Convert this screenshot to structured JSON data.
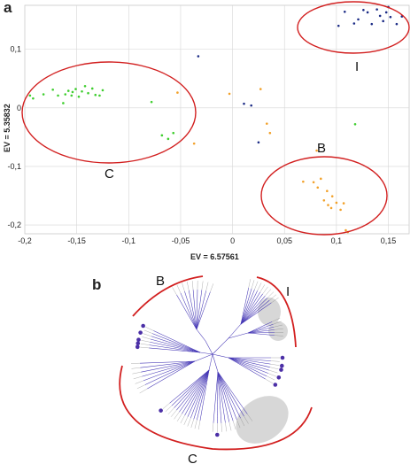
{
  "panels": {
    "a": "a",
    "b": "b"
  },
  "colors": {
    "group_C": "#3fce2f",
    "group_B": "#f2a12a",
    "group_I": "#1c2c86",
    "ellipse": "#d21f1f",
    "grid": "#d6d6d6",
    "branch": "#4436b5",
    "tip": "#4b2fa6",
    "shade": "#d0d0d0"
  },
  "chart_data": [
    {
      "type": "scatter",
      "title": "",
      "xlabel": "EV = 6.57561",
      "ylabel": "EV = 5.35832",
      "xlim": [
        -0.2,
        0.17
      ],
      "ylim": [
        -0.215,
        0.175
      ],
      "xticks": [
        -0.2,
        -0.15,
        -0.1,
        -0.05,
        0,
        0.05,
        0.1,
        0.15
      ],
      "xtick_labels": [
        "-0,2",
        "-0,15",
        "-0,1",
        "-0,05",
        "0",
        "0,05",
        "0,1",
        "0,15"
      ],
      "yticks": [
        0.1,
        0,
        -0.1,
        -0.2
      ],
      "ytick_labels": [
        "0,1",
        "0",
        "-0,1",
        "-0,2"
      ],
      "grid": true,
      "series": [
        {
          "color_key": "group_C",
          "points": [
            [
              -0.195,
              0.021
            ],
            [
              -0.192,
              0.016
            ],
            [
              -0.182,
              0.023
            ],
            [
              -0.173,
              0.031
            ],
            [
              -0.168,
              0.021
            ],
            [
              -0.163,
              0.008
            ],
            [
              -0.161,
              0.023
            ],
            [
              -0.158,
              0.029
            ],
            [
              -0.155,
              0.021
            ],
            [
              -0.154,
              0.027
            ],
            [
              -0.151,
              0.032
            ],
            [
              -0.148,
              0.019
            ],
            [
              -0.145,
              0.028
            ],
            [
              -0.142,
              0.037
            ],
            [
              -0.139,
              0.025
            ],
            [
              -0.135,
              0.033
            ],
            [
              -0.132,
              0.022
            ],
            [
              -0.128,
              0.021
            ],
            [
              -0.125,
              0.03
            ],
            [
              -0.078,
              0.01
            ],
            [
              -0.068,
              -0.047
            ],
            [
              -0.062,
              -0.053
            ],
            [
              -0.057,
              -0.043
            ]
          ]
        },
        {
          "color_key": "group_B",
          "points": [
            [
              -0.053,
              0.026
            ],
            [
              -0.003,
              0.024
            ],
            [
              0.027,
              0.032
            ],
            [
              0.033,
              -0.027
            ],
            [
              0.036,
              -0.043
            ],
            [
              0.081,
              -0.073
            ],
            [
              0.068,
              -0.126
            ],
            [
              0.078,
              -0.127
            ],
            [
              0.082,
              -0.136
            ],
            [
              0.085,
              -0.121
            ],
            [
              0.088,
              -0.158
            ],
            [
              0.091,
              -0.142
            ],
            [
              0.092,
              -0.166
            ],
            [
              0.096,
              -0.151
            ],
            [
              0.095,
              -0.171
            ],
            [
              0.1,
              -0.162
            ],
            [
              0.104,
              -0.174
            ],
            [
              0.107,
              -0.163
            ],
            [
              0.109,
              -0.209
            ],
            [
              0.111,
              -0.212
            ],
            [
              -0.037,
              -0.061
            ]
          ]
        },
        {
          "color_key": "group_I",
          "points": [
            [
              -0.033,
              0.088
            ],
            [
              0.011,
              0.007
            ],
            [
              0.018,
              0.004
            ],
            [
              0.025,
              -0.059
            ],
            [
              0.102,
              0.14
            ],
            [
              0.108,
              0.164
            ],
            [
              0.117,
              0.144
            ],
            [
              0.121,
              0.151
            ],
            [
              0.126,
              0.167
            ],
            [
              0.13,
              0.163
            ],
            [
              0.134,
              0.143
            ],
            [
              0.139,
              0.168
            ],
            [
              0.142,
              0.157
            ],
            [
              0.148,
              0.163
            ],
            [
              0.152,
              0.155
            ],
            [
              0.158,
              0.143
            ],
            [
              0.163,
              0.156
            ],
            [
              0.15,
              0.172
            ],
            [
              0.145,
              0.148
            ]
          ]
        },
        {
          "color_key": "group_C",
          "points": [
            [
              0.118,
              -0.028
            ]
          ]
        }
      ],
      "annotations": [
        "C",
        "B",
        "I"
      ]
    },
    {
      "type": "tree",
      "title": "",
      "annotations": [
        "B",
        "I",
        "C"
      ]
    }
  ]
}
